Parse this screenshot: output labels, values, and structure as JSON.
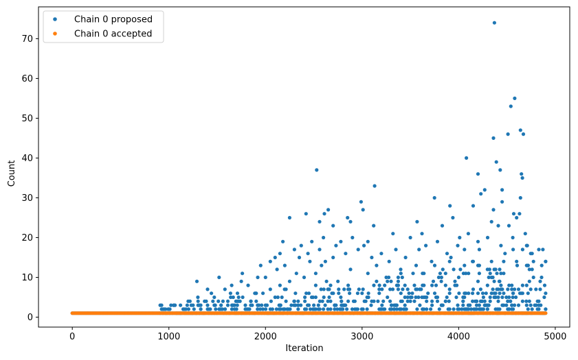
{
  "chart_data": {
    "type": "scatter",
    "title": "",
    "xlabel": "Iteration",
    "ylabel": "Count",
    "xlim": [
      -350,
      5150
    ],
    "ylim": [
      -2.5,
      78
    ],
    "xticks": [
      0,
      1000,
      2000,
      3000,
      4000,
      5000
    ],
    "yticks": [
      0,
      10,
      20,
      30,
      40,
      50,
      60,
      70
    ],
    "legend_position": "top-left",
    "colors": {
      "proposed": "#1f77b4",
      "accepted": "#ff7f0e"
    },
    "series": [
      {
        "name": "Chain 0 proposed",
        "color": "#1f77b4",
        "iteration_range": [
          0,
          4900
        ],
        "points": [
          [
            4370,
            74
          ],
          [
            4580,
            55
          ],
          [
            4540,
            53
          ],
          [
            4640,
            47
          ],
          [
            4670,
            46
          ],
          [
            4510,
            46
          ],
          [
            4360,
            45
          ],
          [
            4080,
            40
          ],
          [
            4390,
            39
          ],
          [
            2530,
            37
          ],
          [
            4430,
            37
          ],
          [
            4200,
            36
          ],
          [
            4650,
            36
          ],
          [
            4660,
            35
          ],
          [
            3130,
            33
          ],
          [
            4270,
            32
          ],
          [
            4450,
            32
          ],
          [
            4230,
            31
          ],
          [
            4640,
            30
          ],
          [
            3750,
            30
          ],
          [
            2990,
            29
          ],
          [
            4450,
            29
          ],
          [
            3910,
            28
          ],
          [
            4150,
            28
          ],
          [
            2650,
            27
          ],
          [
            3010,
            27
          ],
          [
            4360,
            27
          ],
          [
            2420,
            26
          ],
          [
            2610,
            26
          ],
          [
            4570,
            26
          ],
          [
            4630,
            26
          ],
          [
            2250,
            25
          ],
          [
            2850,
            25
          ],
          [
            3940,
            25
          ],
          [
            4600,
            25
          ],
          [
            3570,
            24
          ],
          [
            2560,
            24
          ],
          [
            2880,
            24
          ],
          [
            4340,
            24
          ],
          [
            2700,
            23
          ],
          [
            3120,
            23
          ],
          [
            3830,
            23
          ],
          [
            4410,
            23
          ],
          [
            4520,
            23
          ],
          [
            3620,
            21
          ],
          [
            3320,
            21
          ],
          [
            4100,
            21
          ],
          [
            4690,
            21
          ],
          [
            2600,
            20
          ],
          [
            2900,
            20
          ],
          [
            3500,
            20
          ],
          [
            4010,
            20
          ],
          [
            4300,
            20
          ],
          [
            4560,
            20
          ],
          [
            2180,
            19
          ],
          [
            2480,
            19
          ],
          [
            2780,
            19
          ],
          [
            3060,
            19
          ],
          [
            3780,
            19
          ],
          [
            4200,
            19
          ],
          [
            2370,
            18
          ],
          [
            2730,
            18
          ],
          [
            3020,
            18
          ],
          [
            3660,
            18
          ],
          [
            3990,
            18
          ],
          [
            4710,
            18
          ],
          [
            2300,
            17
          ],
          [
            2560,
            17
          ],
          [
            2960,
            17
          ],
          [
            3350,
            17
          ],
          [
            3590,
            17
          ],
          [
            4060,
            17
          ],
          [
            2150,
            16
          ],
          [
            2440,
            16
          ],
          [
            2830,
            16
          ],
          [
            3200,
            16
          ],
          [
            3880,
            16
          ],
          [
            4480,
            16
          ],
          [
            2100,
            15
          ],
          [
            2350,
            15
          ],
          [
            2700,
            15
          ],
          [
            3100,
            15
          ],
          [
            3450,
            15
          ],
          [
            3920,
            15
          ],
          [
            2050,
            14
          ],
          [
            2460,
            14
          ],
          [
            2620,
            14
          ],
          [
            3280,
            14
          ],
          [
            3720,
            14
          ],
          [
            4150,
            14
          ],
          [
            4600,
            14
          ],
          [
            1950,
            13
          ],
          [
            2200,
            13
          ],
          [
            2580,
            13
          ],
          [
            3150,
            13
          ],
          [
            3560,
            13
          ],
          [
            4860,
            13
          ],
          [
            2120,
            12
          ],
          [
            2880,
            12
          ],
          [
            3400,
            12
          ],
          [
            4320,
            12
          ],
          [
            4760,
            12
          ],
          [
            1760,
            11
          ],
          [
            2320,
            11
          ],
          [
            2520,
            11
          ],
          [
            3060,
            11
          ],
          [
            3640,
            11
          ],
          [
            4050,
            11
          ],
          [
            1520,
            10
          ],
          [
            1920,
            10
          ],
          [
            2000,
            10
          ],
          [
            2400,
            10
          ],
          [
            3250,
            10
          ],
          [
            4000,
            10
          ],
          [
            1290,
            9
          ],
          [
            1750,
            9
          ],
          [
            2250,
            9
          ],
          [
            2750,
            9
          ],
          [
            3300,
            9
          ],
          [
            3820,
            9
          ],
          [
            4420,
            9
          ],
          [
            1650,
            8
          ],
          [
            1820,
            8
          ],
          [
            2150,
            8
          ],
          [
            3180,
            8
          ],
          [
            3980,
            8
          ],
          [
            4890,
            8
          ],
          [
            1400,
            7
          ],
          [
            1580,
            7
          ],
          [
            2050,
            7
          ],
          [
            2650,
            7
          ],
          [
            3420,
            7
          ],
          [
            4150,
            7
          ],
          [
            4800,
            7
          ],
          [
            1440,
            6
          ],
          [
            1710,
            6
          ],
          [
            1900,
            6
          ],
          [
            2450,
            6
          ],
          [
            3000,
            6
          ],
          [
            3520,
            6
          ],
          [
            4250,
            6
          ],
          [
            4900,
            6
          ],
          [
            1300,
            5
          ],
          [
            1470,
            5
          ],
          [
            1640,
            5
          ],
          [
            2100,
            5
          ],
          [
            2780,
            5
          ],
          [
            3620,
            5
          ],
          [
            4560,
            5
          ],
          [
            1200,
            4
          ],
          [
            1370,
            4
          ],
          [
            1560,
            4
          ],
          [
            1850,
            4
          ],
          [
            2300,
            4
          ],
          [
            3100,
            4
          ],
          [
            3900,
            4
          ],
          [
            4700,
            4
          ],
          [
            1050,
            3
          ],
          [
            1120,
            3
          ],
          [
            1250,
            3
          ],
          [
            1480,
            3
          ],
          [
            1660,
            3
          ],
          [
            2000,
            3
          ],
          [
            2500,
            3
          ],
          [
            3350,
            3
          ],
          [
            4100,
            3
          ],
          [
            4850,
            3
          ],
          [
            950,
            2
          ],
          [
            1010,
            2
          ],
          [
            1150,
            2
          ],
          [
            1330,
            2
          ],
          [
            1520,
            2
          ],
          [
            1700,
            2
          ],
          [
            2050,
            2
          ],
          [
            2600,
            2
          ],
          [
            3200,
            2
          ],
          [
            3800,
            2
          ],
          [
            4400,
            2
          ],
          [
            4900,
            2
          ]
        ]
      },
      {
        "name": "Chain 0 accepted",
        "color": "#ff7f0e",
        "iteration_range": [
          0,
          4900
        ],
        "constant_value": 1
      }
    ]
  }
}
